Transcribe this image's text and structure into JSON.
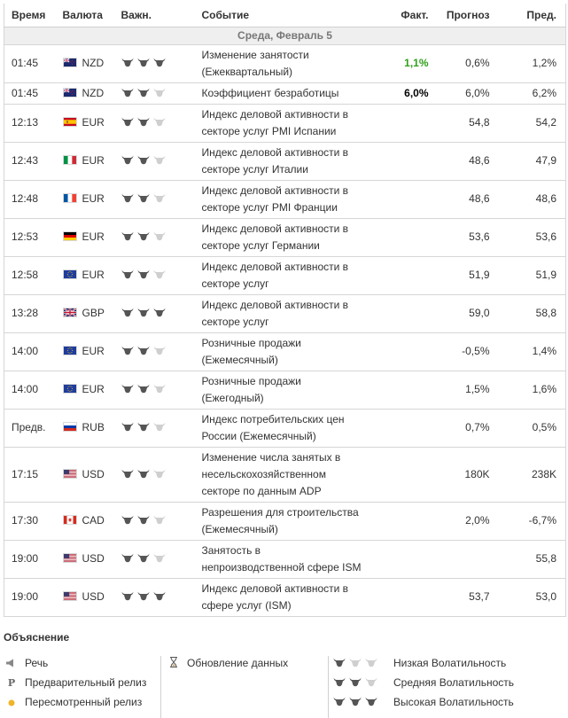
{
  "header": {
    "time": "Время",
    "currency": "Валюта",
    "importance": "Важн.",
    "event": "Событие",
    "actual": "Факт.",
    "forecast": "Прогноз",
    "previous": "Пред."
  },
  "date_label": "Среда, Февраль 5",
  "colors": {
    "actual_up": "#2fa01a",
    "bull_on": "#555555",
    "bull_off": "#cfcfcf"
  },
  "rows": [
    {
      "time": "01:45",
      "flag": "nz",
      "currency": "NZD",
      "importance": 3,
      "event": [
        "Изменение занятости",
        "(Ежеквартальный)"
      ],
      "actual": "1,1%",
      "actual_color": "green",
      "forecast": "0,6%",
      "previous": "1,2%"
    },
    {
      "time": "01:45",
      "flag": "nz",
      "currency": "NZD",
      "importance": 2,
      "event": [
        "Коэффициент безработицы"
      ],
      "actual": "6,0%",
      "actual_color": "black",
      "forecast": "6,0%",
      "previous": "6,2%"
    },
    {
      "time": "12:13",
      "flag": "es",
      "currency": "EUR",
      "importance": 2,
      "event": [
        "Индекс деловой активности в",
        "секторе услуг PMI Испании"
      ],
      "actual": "",
      "forecast": "54,8",
      "previous": "54,2"
    },
    {
      "time": "12:43",
      "flag": "it",
      "currency": "EUR",
      "importance": 2,
      "event": [
        "Индекс деловой активности в",
        "секторе услуг Италии"
      ],
      "actual": "",
      "forecast": "48,6",
      "previous": "47,9"
    },
    {
      "time": "12:48",
      "flag": "fr",
      "currency": "EUR",
      "importance": 2,
      "event": [
        "Индекс деловой активности в",
        "секторе услуг PMI Франции"
      ],
      "actual": "",
      "forecast": "48,6",
      "previous": "48,6"
    },
    {
      "time": "12:53",
      "flag": "de",
      "currency": "EUR",
      "importance": 2,
      "event": [
        "Индекс деловой активности в",
        "секторе услуг Германии"
      ],
      "actual": "",
      "forecast": "53,6",
      "previous": "53,6"
    },
    {
      "time": "12:58",
      "flag": "eu",
      "currency": "EUR",
      "importance": 2,
      "event": [
        "Индекс деловой активности в",
        "секторе услуг"
      ],
      "actual": "",
      "forecast": "51,9",
      "previous": "51,9"
    },
    {
      "time": "13:28",
      "flag": "gb",
      "currency": "GBP",
      "importance": 3,
      "event": [
        "Индекс деловой активности в",
        "секторе услуг"
      ],
      "actual": "",
      "forecast": "59,0",
      "previous": "58,8"
    },
    {
      "time": "14:00",
      "flag": "eu",
      "currency": "EUR",
      "importance": 2,
      "event": [
        "Розничные продажи",
        "(Ежемесячный)"
      ],
      "actual": "",
      "forecast": "-0,5%",
      "previous": "1,4%"
    },
    {
      "time": "14:00",
      "flag": "eu",
      "currency": "EUR",
      "importance": 2,
      "event": [
        "Розничные продажи",
        "(Ежегодный)"
      ],
      "actual": "",
      "forecast": "1,5%",
      "previous": "1,6%"
    },
    {
      "time": "Предв.",
      "flag": "ru",
      "currency": "RUB",
      "importance": 2,
      "event": [
        "Индекс потребительских цен",
        "России (Ежемесячный)"
      ],
      "actual": "",
      "forecast": "0,7%",
      "previous": "0,5%"
    },
    {
      "time": "17:15",
      "flag": "us",
      "currency": "USD",
      "importance": 2,
      "event": [
        "Изменение числа занятых в",
        "несельскохозяйственном",
        "секторе по данным ADP"
      ],
      "actual": "",
      "forecast": "180K",
      "previous": "238K"
    },
    {
      "time": "17:30",
      "flag": "ca",
      "currency": "CAD",
      "importance": 2,
      "event": [
        "Разрешения для строительства",
        "(Ежемесячный)"
      ],
      "actual": "",
      "forecast": "2,0%",
      "previous": "-6,7%"
    },
    {
      "time": "19:00",
      "flag": "us",
      "currency": "USD",
      "importance": 2,
      "event": [
        "Занятость в",
        "непроизводственной сфере ISM"
      ],
      "actual": "",
      "forecast": "",
      "previous": "55,8"
    },
    {
      "time": "19:00",
      "flag": "us",
      "currency": "USD",
      "importance": 3,
      "event": [
        "Индекс деловой активности в",
        "сфере услуг (ISM)"
      ],
      "actual": "",
      "forecast": "53,7",
      "previous": "53,0"
    }
  ],
  "legend": {
    "title": "Объяснение",
    "col1": [
      {
        "icon": "speech-icon",
        "label": "Речь"
      },
      {
        "icon": "preliminary-icon",
        "glyph": "P",
        "label": "Предварительный релиз"
      },
      {
        "icon": "revised-icon",
        "label": "Пересмотренный релиз"
      }
    ],
    "col2": [
      {
        "icon": "hourglass-icon",
        "label": "Обновление данных"
      }
    ],
    "col3": [
      {
        "importance": 1,
        "label": "Низкая Волатильность"
      },
      {
        "importance": 2,
        "label": "Средняя Волатильность"
      },
      {
        "importance": 3,
        "label": "Высокая Волатильность"
      }
    ]
  }
}
